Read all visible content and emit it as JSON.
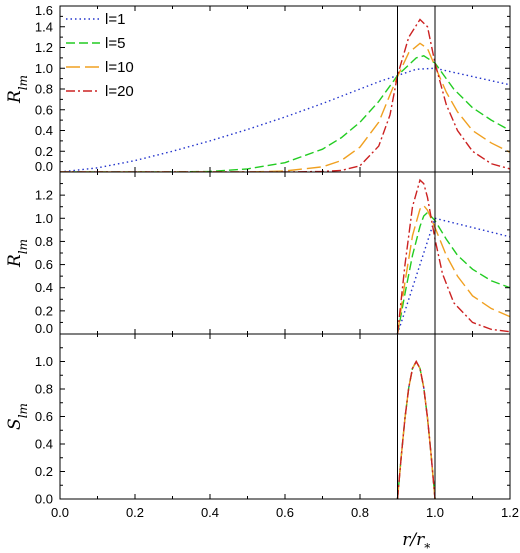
{
  "chart_data": {
    "type": "line",
    "xlabel": "r/r*",
    "xlim": [
      0,
      1.2
    ],
    "x_ticks": [
      "0.0",
      "0.2",
      "0.4",
      "0.6",
      "0.8",
      "1.0",
      "1.2"
    ],
    "vertical_lines": [
      0.9,
      1.0
    ],
    "legend_position": "top-left",
    "styles": {
      "l=1": {
        "color": "#2233cc",
        "dash": "1.5,3"
      },
      "l=5": {
        "color": "#22cc22",
        "dash": "9,4"
      },
      "l=10": {
        "color": "#f0a020",
        "dash": "14,5"
      },
      "l=20": {
        "color": "#cc2222",
        "dash": "9,3,2,3"
      }
    },
    "panels": [
      {
        "ylabel": "R_lm",
        "ylim": [
          0,
          1.6
        ],
        "y_ticks": [
          "0.0",
          "0.2",
          "0.4",
          "0.6",
          "0.8",
          "1.0",
          "1.2",
          "1.4",
          "1.6"
        ],
        "legend": [
          "l=1",
          "l=5",
          "l=10",
          "l=20"
        ],
        "series": [
          {
            "name": "l=1",
            "x": [
              0,
              0.1,
              0.2,
              0.3,
              0.4,
              0.5,
              0.6,
              0.7,
              0.8,
              0.85,
              0.9,
              0.95,
              1.0,
              1.05,
              1.1,
              1.15,
              1.2
            ],
            "y": [
              0,
              0.04,
              0.11,
              0.2,
              0.3,
              0.41,
              0.53,
              0.66,
              0.8,
              0.87,
              0.93,
              0.99,
              1.0,
              0.96,
              0.92,
              0.88,
              0.84
            ]
          },
          {
            "name": "l=5",
            "x": [
              0,
              0.3,
              0.4,
              0.5,
              0.6,
              0.7,
              0.75,
              0.8,
              0.85,
              0.9,
              0.95,
              0.97,
              1.0,
              1.05,
              1.1,
              1.15,
              1.2
            ],
            "y": [
              0,
              0,
              0.005,
              0.03,
              0.09,
              0.22,
              0.33,
              0.48,
              0.68,
              0.93,
              1.1,
              1.12,
              1.05,
              0.8,
              0.62,
              0.5,
              0.4
            ]
          },
          {
            "name": "l=10",
            "x": [
              0,
              0.5,
              0.6,
              0.7,
              0.75,
              0.8,
              0.85,
              0.9,
              0.93,
              0.96,
              0.98,
              1.0,
              1.03,
              1.06,
              1.1,
              1.15,
              1.2
            ],
            "y": [
              0,
              0,
              0.01,
              0.05,
              0.11,
              0.24,
              0.48,
              0.92,
              1.15,
              1.24,
              1.19,
              1.02,
              0.77,
              0.58,
              0.4,
              0.28,
              0.19
            ]
          },
          {
            "name": "l=20",
            "x": [
              0,
              0.6,
              0.7,
              0.75,
              0.8,
              0.85,
              0.88,
              0.9,
              0.93,
              0.96,
              0.98,
              1.0,
              1.03,
              1.06,
              1.1,
              1.15,
              1.2
            ],
            "y": [
              0,
              0,
              0.005,
              0.015,
              0.06,
              0.25,
              0.55,
              0.93,
              1.3,
              1.47,
              1.4,
              1.05,
              0.65,
              0.4,
              0.2,
              0.08,
              0.03
            ]
          }
        ]
      },
      {
        "ylabel": "R_lm",
        "ylim": [
          0,
          1.4
        ],
        "y_ticks": [
          "0.0",
          "0.2",
          "0.4",
          "0.6",
          "0.8",
          "1.0",
          "1.2"
        ],
        "series": [
          {
            "name": "l=1",
            "x": [
              0.9,
              0.92,
              0.94,
              0.96,
              0.98,
              1.0,
              1.05,
              1.1,
              1.15,
              1.2
            ],
            "y": [
              0,
              0.2,
              0.4,
              0.6,
              0.8,
              1.0,
              0.96,
              0.92,
              0.88,
              0.84
            ]
          },
          {
            "name": "l=5",
            "x": [
              0.9,
              0.92,
              0.94,
              0.96,
              0.97,
              0.98,
              1.0,
              1.03,
              1.06,
              1.1,
              1.15,
              1.2
            ],
            "y": [
              0,
              0.35,
              0.68,
              0.93,
              1.02,
              1.05,
              0.98,
              0.82,
              0.68,
              0.56,
              0.46,
              0.4
            ]
          },
          {
            "name": "l=10",
            "x": [
              0.9,
              0.92,
              0.94,
              0.96,
              0.97,
              0.98,
              1.0,
              1.03,
              1.06,
              1.1,
              1.15,
              1.2
            ],
            "y": [
              0,
              0.45,
              0.85,
              1.08,
              1.11,
              1.07,
              0.92,
              0.68,
              0.5,
              0.33,
              0.22,
              0.15
            ]
          },
          {
            "name": "l=20",
            "x": [
              0.9,
              0.92,
              0.94,
              0.96,
              0.97,
              0.98,
              1.0,
              1.02,
              1.05,
              1.1,
              1.15,
              1.2
            ],
            "y": [
              0,
              0.6,
              1.1,
              1.33,
              1.3,
              1.18,
              0.82,
              0.52,
              0.27,
              0.1,
              0.04,
              0.02
            ]
          }
        ]
      },
      {
        "ylabel": "S_lm",
        "ylim": [
          0,
          1.2
        ],
        "y_ticks": [
          "0.0",
          "0.2",
          "0.4",
          "0.6",
          "0.8",
          "1.0"
        ],
        "series": [
          {
            "name": "l=1",
            "x": [
              0.9,
              0.91,
              0.92,
              0.93,
              0.94,
              0.95,
              0.96,
              0.97,
              0.98,
              0.99,
              1.0
            ],
            "y": [
              0,
              0.31,
              0.59,
              0.81,
              0.95,
              1.0,
              0.95,
              0.81,
              0.59,
              0.31,
              0
            ]
          },
          {
            "name": "l=5",
            "x": [
              0.9,
              0.91,
              0.92,
              0.93,
              0.94,
              0.95,
              0.96,
              0.97,
              0.98,
              0.99,
              1.0
            ],
            "y": [
              0,
              0.31,
              0.59,
              0.81,
              0.95,
              1.0,
              0.95,
              0.81,
              0.59,
              0.31,
              0
            ]
          },
          {
            "name": "l=10",
            "x": [
              0.9,
              0.91,
              0.92,
              0.93,
              0.94,
              0.95,
              0.96,
              0.97,
              0.98,
              0.99,
              1.0
            ],
            "y": [
              0,
              0.31,
              0.59,
              0.81,
              0.95,
              1.0,
              0.95,
              0.81,
              0.59,
              0.31,
              0
            ]
          },
          {
            "name": "l=20",
            "x": [
              0.9,
              0.91,
              0.92,
              0.93,
              0.94,
              0.95,
              0.96,
              0.97,
              0.98,
              0.99,
              1.0
            ],
            "y": [
              0,
              0.31,
              0.59,
              0.81,
              0.95,
              1.0,
              0.95,
              0.81,
              0.59,
              0.31,
              0
            ]
          }
        ]
      }
    ]
  }
}
